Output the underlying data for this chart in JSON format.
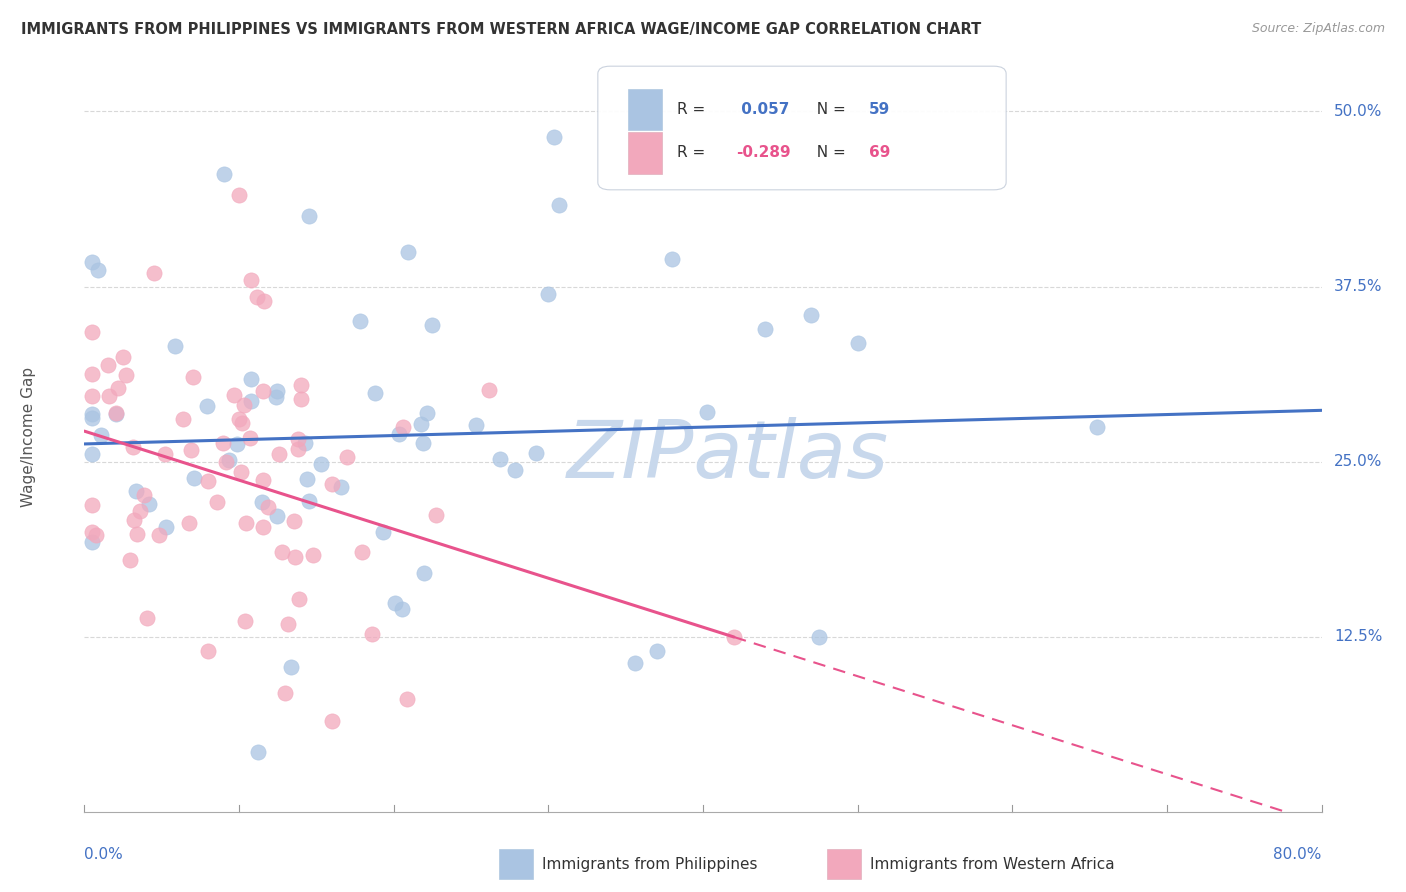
{
  "title": "IMMIGRANTS FROM PHILIPPINES VS IMMIGRANTS FROM WESTERN AFRICA WAGE/INCOME GAP CORRELATION CHART",
  "source": "Source: ZipAtlas.com",
  "ylabel": "Wage/Income Gap",
  "ytick_labels": [
    "12.5%",
    "25.0%",
    "37.5%",
    "50.0%"
  ],
  "ytick_vals": [
    0.125,
    0.25,
    0.375,
    0.5
  ],
  "xlim": [
    0.0,
    0.8
  ],
  "ylim": [
    0.0,
    0.535
  ],
  "color_philippines": "#aac4e2",
  "color_western_africa": "#f2a8bc",
  "trendline_philippines": "#4472c4",
  "trendline_western_africa": "#e8538c",
  "watermark_color": "#c8d8ec",
  "background_color": "#ffffff",
  "grid_color": "#d8d8d8",
  "r_value_philippines": 0.057,
  "n_philippines": 59,
  "r_value_western_africa": -0.289,
  "n_western_africa": 69,
  "seed": 42,
  "legend_box_color": "#f0f4fa",
  "legend_border_color": "#c8d0dc",
  "bottom_legend_label1": "Immigrants from Philippines",
  "bottom_legend_label2": "Immigrants from Western Africa"
}
